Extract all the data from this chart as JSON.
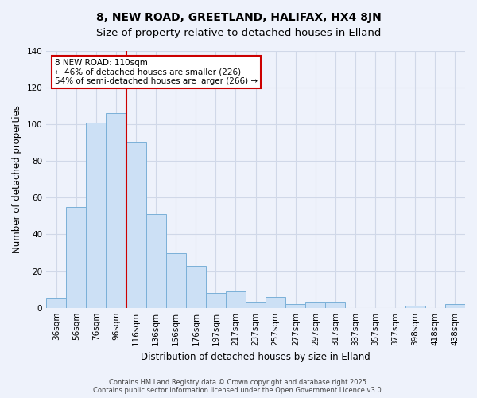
{
  "title": "8, NEW ROAD, GREETLAND, HALIFAX, HX4 8JN",
  "subtitle": "Size of property relative to detached houses in Elland",
  "xlabel": "Distribution of detached houses by size in Elland",
  "ylabel": "Number of detached properties",
  "categories": [
    "36sqm",
    "56sqm",
    "76sqm",
    "96sqm",
    "116sqm",
    "136sqm",
    "156sqm",
    "176sqm",
    "197sqm",
    "217sqm",
    "237sqm",
    "257sqm",
    "277sqm",
    "297sqm",
    "317sqm",
    "337sqm",
    "357sqm",
    "377sqm",
    "398sqm",
    "418sqm",
    "438sqm"
  ],
  "values": [
    5,
    55,
    101,
    106,
    90,
    51,
    30,
    23,
    8,
    9,
    3,
    6,
    2,
    3,
    3,
    0,
    0,
    0,
    1,
    0,
    2
  ],
  "bar_color": "#cce0f5",
  "bar_edge_color": "#7ab0d8",
  "ylim": [
    0,
    140
  ],
  "yticks": [
    0,
    20,
    40,
    60,
    80,
    100,
    120,
    140
  ],
  "vline_color": "#cc0000",
  "annotation_title": "8 NEW ROAD: 110sqm",
  "annotation_line1": "← 46% of detached houses are smaller (226)",
  "annotation_line2": "54% of semi-detached houses are larger (266) →",
  "annotation_box_color": "#ffffff",
  "annotation_box_edge": "#cc0000",
  "footer1": "Contains HM Land Registry data © Crown copyright and database right 2025.",
  "footer2": "Contains public sector information licensed under the Open Government Licence v3.0.",
  "background_color": "#eef2fb",
  "grid_color": "#d0d8e8",
  "title_fontsize": 10,
  "axis_label_fontsize": 8.5,
  "tick_fontsize": 7.5,
  "annotation_fontsize": 7.5,
  "footer_fontsize": 6.0
}
